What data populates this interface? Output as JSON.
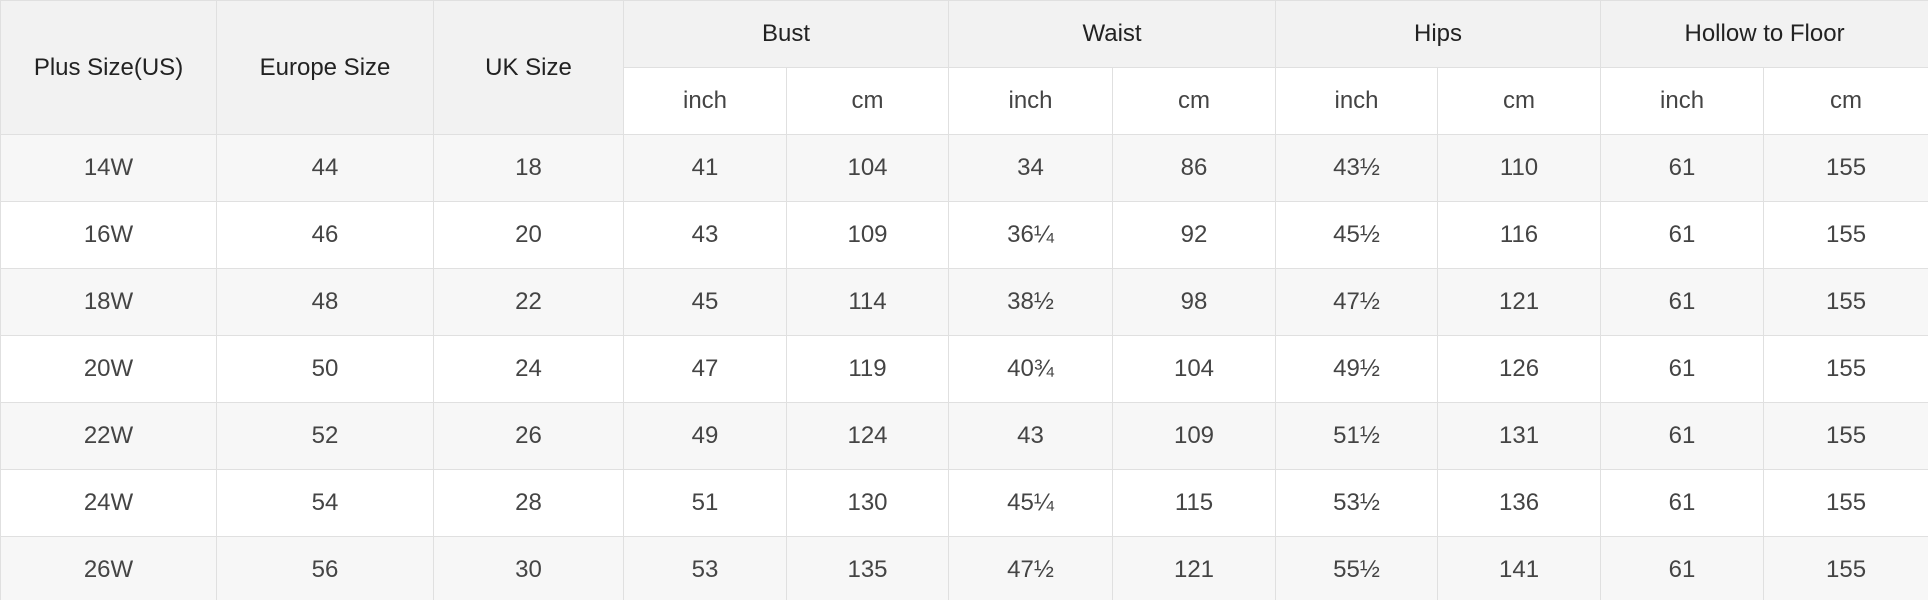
{
  "table": {
    "header": [
      "Plus Size(US)",
      "Europe Size",
      "UK Size",
      "Bust",
      "Waist",
      "Hips",
      "Hollow to Floor"
    ],
    "units": [
      "inch",
      "cm",
      "inch",
      "cm",
      "inch",
      "cm",
      "inch",
      "cm"
    ],
    "rows": [
      [
        "14W",
        "44",
        "18",
        "41",
        "104",
        "34",
        "86",
        "43½",
        "110",
        "61",
        "155"
      ],
      [
        "16W",
        "46",
        "20",
        "43",
        "109",
        "36¼",
        "92",
        "45½",
        "116",
        "61",
        "155"
      ],
      [
        "18W",
        "48",
        "22",
        "45",
        "114",
        "38½",
        "98",
        "47½",
        "121",
        "61",
        "155"
      ],
      [
        "20W",
        "50",
        "24",
        "47",
        "119",
        "40¾",
        "104",
        "49½",
        "126",
        "61",
        "155"
      ],
      [
        "22W",
        "52",
        "26",
        "49",
        "124",
        "43",
        "109",
        "51½",
        "131",
        "61",
        "155"
      ],
      [
        "24W",
        "54",
        "28",
        "51",
        "130",
        "45¼",
        "115",
        "53½",
        "136",
        "61",
        "155"
      ],
      [
        "26W",
        "56",
        "30",
        "53",
        "135",
        "47½",
        "121",
        "55½",
        "141",
        "61",
        "155"
      ]
    ]
  }
}
